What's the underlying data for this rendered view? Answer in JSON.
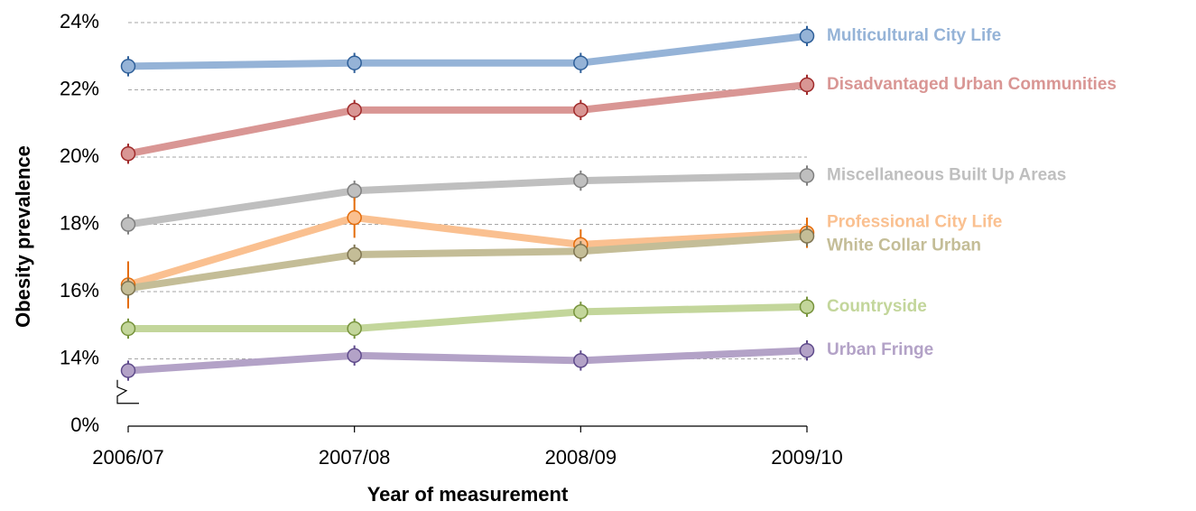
{
  "chart_data": {
    "type": "line",
    "x_label": "Year of measurement",
    "y_label": "Obesity prevalence",
    "categories": [
      "2006/07",
      "2007/08",
      "2008/09",
      "2009/10"
    ],
    "ylim": [
      0,
      24
    ],
    "y_break": [
      0,
      12
    ],
    "yticks": [
      {
        "value": 0,
        "label": "0%"
      },
      {
        "value": 14,
        "label": "14%"
      },
      {
        "value": 16,
        "label": "16%"
      },
      {
        "value": 18,
        "label": "18%"
      },
      {
        "value": 20,
        "label": "20%"
      },
      {
        "value": 22,
        "label": "22%"
      },
      {
        "value": 24,
        "label": "24%"
      }
    ],
    "grid": true,
    "series": [
      {
        "name": "Multicultural City Life",
        "color": "#95b3d7",
        "marker_color": "#2e5f99",
        "values": [
          22.7,
          22.8,
          22.8,
          23.6
        ],
        "errors": [
          0.3,
          0.3,
          0.3,
          0.3
        ]
      },
      {
        "name": "Disadvantaged Urban Communities",
        "color": "#d99694",
        "marker_color": "#a02b2b",
        "values": [
          20.1,
          21.4,
          21.4,
          22.15
        ],
        "errors": [
          0.3,
          0.3,
          0.3,
          0.3
        ]
      },
      {
        "name": "Miscellaneous Built Up Areas",
        "color": "#bfbfbf",
        "marker_color": "#7f7f7f",
        "values": [
          18.0,
          19.0,
          19.3,
          19.45
        ],
        "errors": [
          0.3,
          0.3,
          0.3,
          0.3
        ]
      },
      {
        "name": "Professional City Life",
        "color": "#fac090",
        "marker_color": "#e46c0a",
        "values": [
          16.2,
          18.2,
          17.4,
          17.75
        ],
        "errors": [
          0.7,
          0.6,
          0.45,
          0.45
        ]
      },
      {
        "name": "White Collar Urban",
        "color": "#c4bd97",
        "marker_color": "#7f7552",
        "values": [
          16.1,
          17.1,
          17.2,
          17.65
        ],
        "errors": [
          0.3,
          0.3,
          0.3,
          0.3
        ]
      },
      {
        "name": "Countryside",
        "color": "#c3d69b",
        "marker_color": "#77933c",
        "values": [
          14.9,
          14.9,
          15.4,
          15.55
        ],
        "errors": [
          0.3,
          0.3,
          0.3,
          0.3
        ]
      },
      {
        "name": "Urban Fringe",
        "color": "#b3a2c7",
        "marker_color": "#5f4b8b",
        "values": [
          13.65,
          14.1,
          13.95,
          14.25
        ],
        "errors": [
          0.3,
          0.3,
          0.3,
          0.3
        ]
      }
    ]
  }
}
